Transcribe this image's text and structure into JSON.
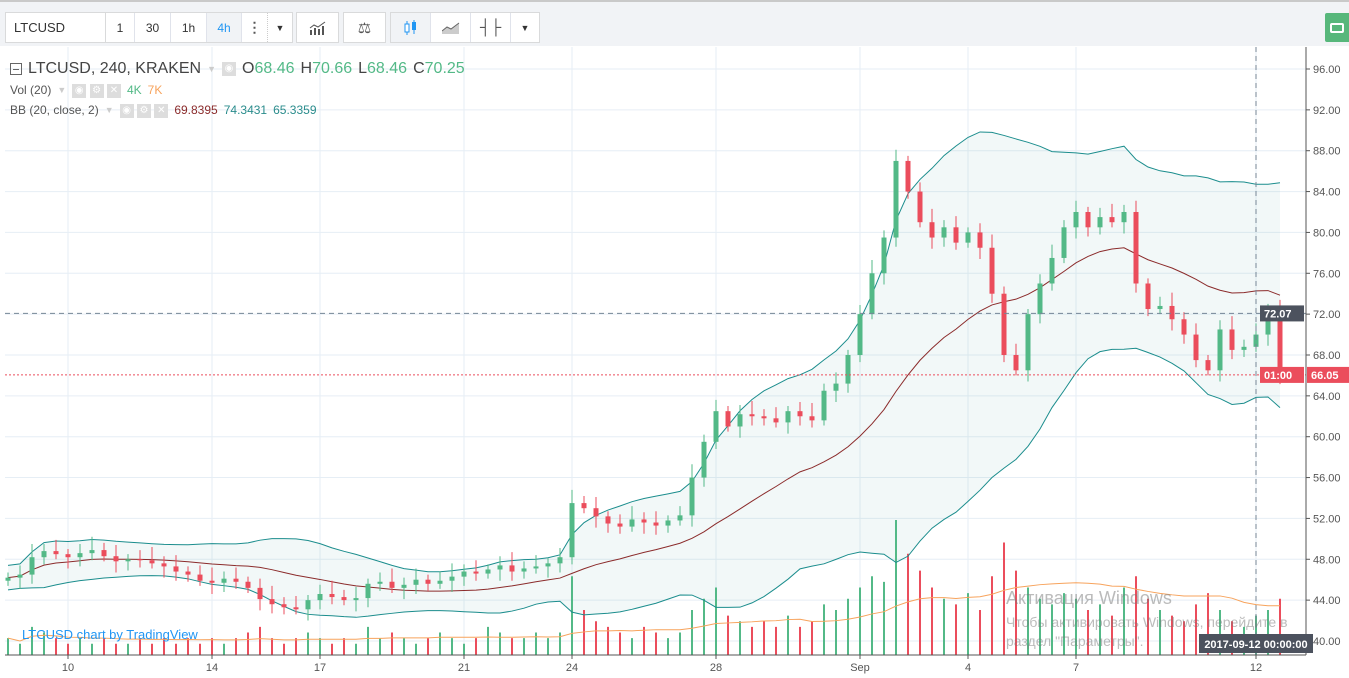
{
  "toolbar": {
    "symbol": "LTCUSD",
    "intervals": [
      "1",
      "30",
      "1h",
      "4h"
    ],
    "active_interval": "4h",
    "icons": [
      "more-icon",
      "chevron-down-icon",
      "indicators-icon",
      "compare-icon",
      "candles-icon",
      "area-chart-icon",
      "bars-icon",
      "chevron-down-icon"
    ],
    "snapshot_icon": "camera-icon"
  },
  "legend": {
    "title": "LTCUSD, 240, KRAKEN",
    "o_label": "O",
    "o": "68.46",
    "h_label": "H",
    "h": "70.66",
    "l_label": "L",
    "l": "68.46",
    "c_label": "C",
    "c": "70.25",
    "vol_label": "Vol (20)",
    "vol_val": "4K",
    "vol_ma": "7K",
    "bb_label": "BB (20, close, 2)",
    "bb_basis": "69.8395",
    "bb_upper": "74.3431",
    "bb_lower": "65.3359"
  },
  "brand": "LTCUSD chart by TradingView",
  "watermark": {
    "line1": "Активация Windows",
    "line2": "Чтобы активировать Windows, перейдите в",
    "line3": "раздел \"Параметры\"."
  },
  "colors": {
    "up": "#53b987",
    "down": "#eb4d5c",
    "bb_band": "#1b8d8d",
    "bb_basis": "#8b2b2b",
    "vol_ma": "#f7a35c",
    "snapshot": "#57b77b"
  },
  "crosshair": {
    "price": "72.07",
    "date": "2017-09-12 00:00:00"
  },
  "last_price": {
    "price": "66.05",
    "countdown": "01:00"
  },
  "chart_data": {
    "type": "candlestick",
    "ylim": [
      38,
      98
    ],
    "yticks": [
      "40.00",
      "44.00",
      "48.00",
      "52.00",
      "56.00",
      "60.00",
      "64.00",
      "68.00",
      "72.00",
      "76.00",
      "80.00",
      "84.00",
      "88.00",
      "92.00",
      "96.00"
    ],
    "xticks": [
      {
        "label": "10",
        "index": 5
      },
      {
        "label": "14",
        "index": 17
      },
      {
        "label": "17",
        "index": 26
      },
      {
        "label": "21",
        "index": 38
      },
      {
        "label": "24",
        "index": 47
      },
      {
        "label": "28",
        "index": 59
      },
      {
        "label": "Sep",
        "index": 71
      },
      {
        "label": "4",
        "index": 80
      },
      {
        "label": "7",
        "index": 89
      },
      {
        "label": "12",
        "index": 104
      }
    ],
    "closes": [
      46.2,
      46.5,
      48.2,
      48.8,
      48.5,
      48.2,
      48.6,
      48.9,
      48.3,
      47.8,
      48.0,
      47.9,
      47.6,
      47.3,
      46.8,
      46.5,
      45.9,
      45.7,
      46.1,
      45.8,
      45.2,
      44.1,
      43.6,
      43.3,
      43.1,
      44.0,
      44.6,
      44.3,
      44.0,
      44.2,
      45.6,
      45.8,
      45.2,
      45.5,
      46.0,
      45.6,
      45.9,
      46.3,
      46.8,
      46.6,
      47.0,
      47.4,
      46.8,
      47.1,
      47.3,
      47.6,
      48.2,
      53.5,
      53.0,
      52.2,
      51.5,
      51.2,
      51.9,
      51.6,
      51.3,
      51.8,
      52.3,
      56.0,
      59.5,
      62.5,
      61.0,
      62.2,
      62.0,
      61.8,
      61.4,
      62.5,
      62.0,
      61.6,
      64.5,
      65.2,
      68.0,
      72.0,
      76.0,
      79.5,
      87.0,
      84.0,
      81.0,
      79.5,
      80.5,
      79.0,
      80.0,
      78.5,
      74.0,
      68.0,
      66.5,
      72.0,
      75.0,
      77.5,
      80.5,
      82.0,
      80.5,
      81.5,
      81.0,
      82.0,
      75.0,
      72.5,
      72.8,
      71.5,
      70.0,
      67.5,
      66.5,
      70.5,
      68.5,
      68.8,
      70.0,
      72.5,
      66.05
    ],
    "volumes_k": [
      3,
      2,
      5,
      4,
      3,
      2,
      3,
      2,
      3,
      2,
      2,
      3,
      2,
      3,
      2,
      3,
      2,
      3,
      2,
      3,
      4,
      5,
      3,
      2,
      3,
      4,
      3,
      2,
      3,
      2,
      5,
      3,
      4,
      3,
      2,
      3,
      4,
      3,
      2,
      3,
      5,
      4,
      3,
      3,
      4,
      3,
      4,
      14,
      8,
      6,
      5,
      4,
      3,
      5,
      4,
      3,
      4,
      8,
      10,
      12,
      7,
      6,
      5,
      6,
      5,
      7,
      5,
      6,
      9,
      8,
      10,
      12,
      14,
      13,
      24,
      18,
      15,
      12,
      10,
      9,
      11,
      8,
      14,
      20,
      15,
      12,
      10,
      9,
      11,
      10,
      8,
      9,
      7,
      12,
      14,
      10,
      8,
      7,
      6,
      9,
      11,
      8,
      6,
      5,
      7,
      8,
      10
    ],
    "volume_ma_period": 20,
    "bb": {
      "period": 20,
      "mult": 2
    }
  }
}
